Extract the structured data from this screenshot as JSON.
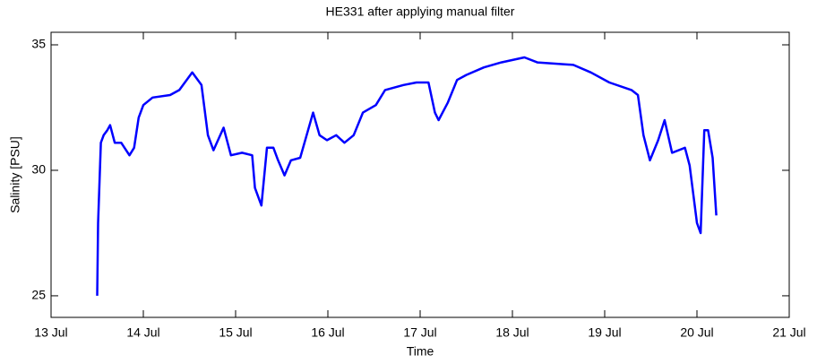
{
  "chart_data": {
    "type": "line",
    "title": "HE331 after applying manual filter",
    "xlabel": "Time",
    "ylabel": "Salinity [PSU]",
    "x": [
      13.5,
      13.51,
      13.54,
      13.57,
      13.61,
      13.64,
      13.69,
      13.76,
      13.85,
      13.9,
      13.95,
      14.0,
      14.1,
      14.29,
      14.39,
      14.53,
      14.63,
      14.7,
      14.76,
      14.87,
      14.95,
      15.07,
      15.18,
      15.21,
      15.28,
      15.34,
      15.41,
      15.46,
      15.53,
      15.6,
      15.7,
      15.77,
      15.84,
      15.91,
      15.99,
      16.09,
      16.18,
      16.28,
      16.38,
      16.52,
      16.62,
      16.82,
      16.96,
      17.09,
      17.16,
      17.2,
      17.3,
      17.4,
      17.5,
      17.69,
      17.88,
      18.13,
      18.27,
      18.66,
      18.85,
      19.05,
      19.29,
      19.36,
      19.42,
      19.49,
      19.58,
      19.65,
      19.73,
      19.87,
      19.92,
      20.0,
      20.04,
      20.08,
      20.12,
      20.17,
      20.21
    ],
    "series": [
      {
        "color": "#0000ff",
        "values": [
          25.0,
          27.9,
          31.1,
          31.4,
          31.6,
          31.8,
          31.1,
          31.1,
          30.6,
          30.9,
          32.1,
          32.6,
          32.9,
          33.0,
          33.2,
          33.9,
          33.4,
          31.4,
          30.8,
          31.7,
          30.6,
          30.7,
          30.6,
          29.3,
          28.6,
          30.9,
          30.9,
          30.4,
          29.8,
          30.4,
          30.5,
          31.4,
          32.3,
          31.4,
          31.2,
          31.4,
          31.1,
          31.4,
          32.3,
          32.6,
          33.2,
          33.4,
          33.5,
          33.5,
          32.3,
          32.0,
          32.7,
          33.6,
          33.8,
          34.1,
          34.3,
          34.5,
          34.3,
          34.2,
          33.9,
          33.5,
          33.2,
          33.0,
          31.4,
          30.4,
          31.2,
          32.0,
          30.7,
          30.9,
          30.2,
          27.9,
          27.5,
          31.6,
          31.6,
          30.5,
          28.2
        ]
      }
    ],
    "xlim": [
      13,
      21
    ],
    "xticks": [
      {
        "value": 13,
        "label": "13 Jul"
      },
      {
        "value": 14,
        "label": "14 Jul"
      },
      {
        "value": 15,
        "label": "15 Jul"
      },
      {
        "value": 16,
        "label": "16 Jul"
      },
      {
        "value": 17,
        "label": "17 Jul"
      },
      {
        "value": 18,
        "label": "18 Jul"
      },
      {
        "value": 19,
        "label": "19 Jul"
      },
      {
        "value": 20,
        "label": "20 Jul"
      },
      {
        "value": 21,
        "label": "21 Jul"
      }
    ],
    "ylim": [
      24.14,
      35.5
    ],
    "yticks": [
      25,
      30,
      35
    ],
    "grid": false
  }
}
